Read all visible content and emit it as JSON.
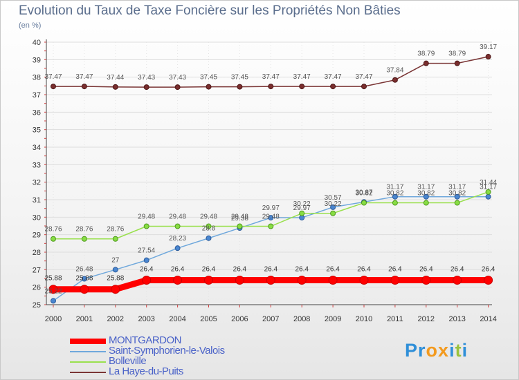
{
  "title": "Evolution du Taux de Taxe Foncière sur les Propriétés Non Bâties",
  "subtitle": "(en %)",
  "logo": {
    "text": "Proxiti"
  },
  "chart_data": {
    "type": "line",
    "title": "Evolution du Taux de Taxe Foncière sur les Propriétés Non Bâties",
    "ylabel": "(en %)",
    "xlabel": "",
    "x": [
      "2000",
      "2001",
      "2002",
      "2003",
      "2004",
      "2005",
      "2006",
      "2007",
      "2008",
      "2009",
      "2010",
      "2011",
      "2012",
      "2013",
      "2014"
    ],
    "ylim": [
      25,
      40
    ],
    "yticks": [
      25,
      26,
      27,
      28,
      29,
      30,
      31,
      32,
      33,
      34,
      35,
      36,
      37,
      38,
      39,
      40
    ],
    "grid": true,
    "legend_position": "bottom-left",
    "series": [
      {
        "name": "MONTGARDON",
        "color": "#ff0000",
        "values": [
          25.88,
          25.88,
          25.88,
          26.4,
          26.4,
          26.4,
          26.4,
          26.4,
          26.4,
          26.4,
          26.4,
          26.4,
          26.4,
          26.4,
          26.4
        ],
        "labels": [
          "25.88",
          "25.88",
          "25.88",
          "26.4",
          "26.4",
          "26.4",
          "26.4",
          "26.4",
          "26.4",
          "26.4",
          "26.4",
          "26.4",
          "26.4",
          "26.4",
          "26.4"
        ]
      },
      {
        "name": "Saint-Symphorien-le-Valois",
        "color": "#6fa8dc",
        "values": [
          25.22,
          26.48,
          27,
          27.54,
          28.23,
          28.8,
          29.38,
          29.97,
          29.97,
          30.57,
          30.87,
          31.17,
          31.17,
          31.17,
          31.17
        ],
        "labels": [
          "25.22",
          "26.48",
          "27",
          "27.54",
          "28.23",
          "28.8",
          "29.38",
          "29.97",
          "29.97",
          "30.57",
          "30.87",
          "31.17",
          "31.17",
          "31.17",
          "31.17"
        ]
      },
      {
        "name": "Bolleville",
        "color": "#99e04d",
        "values": [
          28.76,
          28.76,
          28.76,
          29.48,
          29.48,
          29.48,
          29.48,
          29.48,
          30.22,
          30.22,
          30.82,
          30.82,
          30.82,
          30.82,
          31.44
        ],
        "labels": [
          "28.76",
          "28.76",
          "28.76",
          "29.48",
          "29.48",
          "29.48",
          "29.48",
          "29.48",
          "30.22",
          "30.22",
          "30.82",
          "30.82",
          "30.82",
          "30.82",
          "31.44"
        ]
      },
      {
        "name": "La Haye-du-Puits",
        "color": "#7a3535",
        "values": [
          37.47,
          37.47,
          37.44,
          37.43,
          37.43,
          37.45,
          37.45,
          37.47,
          37.47,
          37.47,
          37.47,
          37.84,
          38.79,
          38.79,
          39.17
        ],
        "labels": [
          "37.47",
          "37.47",
          "37.44",
          "37.43",
          "37.43",
          "37.45",
          "37.45",
          "37.47",
          "37.47",
          "37.47",
          "37.47",
          "37.84",
          "38.79",
          "38.79",
          "39.17"
        ]
      }
    ]
  }
}
